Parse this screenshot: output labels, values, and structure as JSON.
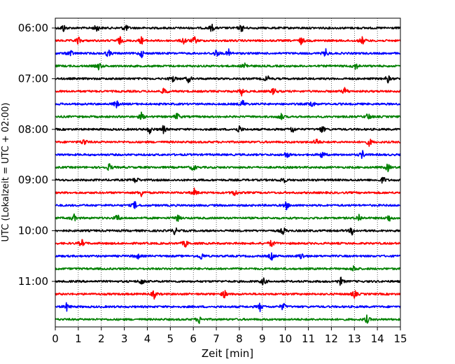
{
  "chart_data": {
    "type": "line",
    "title": "",
    "xlabel": "Zeit  [min]",
    "ylabel": "UTC (Lokalzeit = UTC + 02:00)",
    "xlim": [
      0,
      15
    ],
    "x_ticks": [
      0,
      1,
      2,
      3,
      4,
      5,
      6,
      7,
      8,
      9,
      10,
      11,
      12,
      13,
      14,
      15
    ],
    "x_tick_labels": [
      "0",
      "1",
      "2",
      "3",
      "4",
      "5",
      "6",
      "7",
      "8",
      "9",
      "10",
      "11",
      "12",
      "13",
      "14",
      "15"
    ],
    "y_tick_labels": [
      "06:00",
      "07:00",
      "08:00",
      "09:00",
      "10:00",
      "11:00"
    ],
    "y_ticks_trace_index": [
      0,
      4,
      8,
      12,
      16,
      20
    ],
    "minutes_per_trace": 15,
    "grid": "vertical dotted lines at each minute",
    "trace_colors": [
      "#000000",
      "#ff0000",
      "#0000ff",
      "#008000"
    ],
    "traces": [
      {
        "start": "06:00",
        "color": "#000000",
        "events": [
          0.35,
          1.8,
          3.05,
          6.8,
          8.1
        ]
      },
      {
        "start": "06:15",
        "color": "#ff0000",
        "events": [
          1.0,
          2.8,
          3.75,
          5.6,
          6.05,
          10.7,
          13.35
        ]
      },
      {
        "start": "06:30",
        "color": "#0000ff",
        "events": [
          0.65,
          2.3,
          3.75,
          7.0,
          7.55,
          11.75
        ]
      },
      {
        "start": "06:45",
        "color": "#008000",
        "events": [
          1.9,
          8.25,
          13.05
        ]
      },
      {
        "start": "07:00",
        "color": "#000000",
        "events": [
          5.1,
          5.8,
          9.2,
          14.45
        ]
      },
      {
        "start": "07:15",
        "color": "#ff0000",
        "events": [
          4.75,
          8.1,
          9.5,
          12.6
        ]
      },
      {
        "start": "07:30",
        "color": "#0000ff",
        "events": [
          2.65,
          8.15,
          11.15
        ]
      },
      {
        "start": "07:45",
        "color": "#008000",
        "events": [
          3.75,
          5.3,
          9.8,
          13.6
        ]
      },
      {
        "start": "08:00",
        "color": "#000000",
        "events": [
          4.1,
          4.7,
          8.0,
          10.3,
          11.6
        ]
      },
      {
        "start": "08:15",
        "color": "#ff0000",
        "events": [
          1.25,
          11.35,
          13.65
        ]
      },
      {
        "start": "08:30",
        "color": "#0000ff",
        "events": [
          10.05,
          11.6,
          13.35
        ]
      },
      {
        "start": "08:45",
        "color": "#008000",
        "events": [
          2.35,
          6.0,
          14.45
        ]
      },
      {
        "start": "09:00",
        "color": "#000000",
        "events": [
          3.5,
          9.9,
          14.25
        ]
      },
      {
        "start": "09:15",
        "color": "#ff0000",
        "events": [
          3.75,
          6.05,
          7.8
        ]
      },
      {
        "start": "09:30",
        "color": "#0000ff",
        "events": [
          3.45,
          10.05
        ]
      },
      {
        "start": "09:45",
        "color": "#008000",
        "events": [
          0.8,
          2.7,
          5.3,
          13.2,
          14.5
        ]
      },
      {
        "start": "10:00",
        "color": "#000000",
        "events": [
          5.2,
          9.9,
          12.9
        ]
      },
      {
        "start": "10:15",
        "color": "#ff0000",
        "events": [
          1.15,
          5.65,
          9.4
        ]
      },
      {
        "start": "10:30",
        "color": "#0000ff",
        "events": [
          3.55,
          6.35,
          9.4,
          10.7
        ]
      },
      {
        "start": "10:45",
        "color": "#008000",
        "events": [
          13.0
        ]
      },
      {
        "start": "11:00",
        "color": "#000000",
        "events": [
          3.75,
          9.05,
          12.4
        ]
      },
      {
        "start": "11:15",
        "color": "#ff0000",
        "events": [
          4.3,
          7.35,
          13.0
        ]
      },
      {
        "start": "11:30",
        "color": "#0000ff",
        "events": [
          0.5,
          8.9,
          9.9
        ]
      },
      {
        "start": "11:45",
        "color": "#008000",
        "events": [
          6.25,
          13.55
        ]
      }
    ]
  }
}
